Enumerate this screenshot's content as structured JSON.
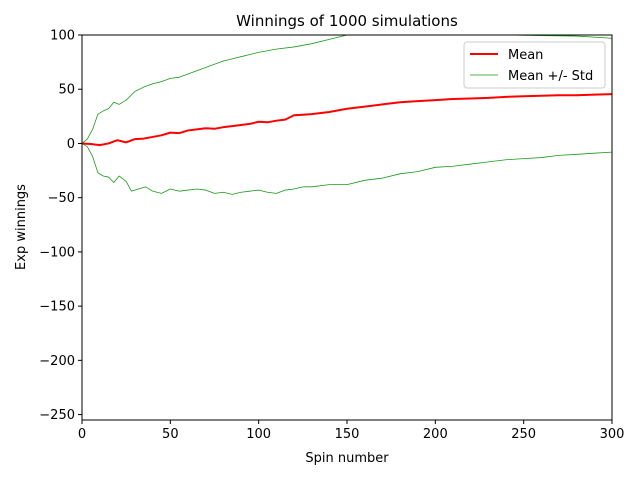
{
  "chart_data": {
    "type": "line",
    "title": "Winnings of 1000 simulations",
    "xlabel": "Spin number",
    "ylabel": "Exp winnings",
    "xlim": [
      0,
      300
    ],
    "ylim": [
      -255,
      100
    ],
    "xticks": [
      0,
      50,
      100,
      150,
      200,
      250,
      300
    ],
    "yticks": [
      100,
      50,
      0,
      -50,
      -100,
      -150,
      -200,
      -250
    ],
    "grid": false,
    "legend_position": "top-right",
    "series": [
      {
        "name": "Mean",
        "color": "#ff0000",
        "role": "mean",
        "points": [
          [
            0,
            0
          ],
          [
            5,
            -0.5
          ],
          [
            10,
            -1.5
          ],
          [
            15,
            0
          ],
          [
            20,
            3
          ],
          [
            25,
            1
          ],
          [
            30,
            4
          ],
          [
            35,
            4.5
          ],
          [
            40,
            6
          ],
          [
            45,
            7.5
          ],
          [
            50,
            10
          ],
          [
            55,
            9.5
          ],
          [
            60,
            12
          ],
          [
            65,
            13
          ],
          [
            70,
            14
          ],
          [
            75,
            13.5
          ],
          [
            80,
            15
          ],
          [
            85,
            16
          ],
          [
            90,
            17
          ],
          [
            95,
            18
          ],
          [
            100,
            20
          ],
          [
            105,
            19.5
          ],
          [
            110,
            21
          ],
          [
            115,
            22
          ],
          [
            120,
            26
          ],
          [
            125,
            26.5
          ],
          [
            130,
            27
          ],
          [
            140,
            29
          ],
          [
            150,
            32
          ],
          [
            160,
            34
          ],
          [
            170,
            36
          ],
          [
            180,
            38
          ],
          [
            190,
            39
          ],
          [
            200,
            40
          ],
          [
            210,
            41
          ],
          [
            220,
            41.5
          ],
          [
            230,
            42
          ],
          [
            240,
            43
          ],
          [
            250,
            43.5
          ],
          [
            260,
            44
          ],
          [
            270,
            44.5
          ],
          [
            280,
            44.5
          ],
          [
            290,
            45
          ],
          [
            300,
            45.5
          ]
        ]
      },
      {
        "name": "Mean +/- Std",
        "color": "#1a9a1a",
        "role": "upper",
        "points": [
          [
            0,
            0
          ],
          [
            3,
            4
          ],
          [
            6,
            13
          ],
          [
            9,
            27
          ],
          [
            12,
            30
          ],
          [
            15,
            32
          ],
          [
            18,
            38
          ],
          [
            21,
            36
          ],
          [
            25,
            40
          ],
          [
            30,
            48
          ],
          [
            35,
            52
          ],
          [
            40,
            55
          ],
          [
            45,
            57
          ],
          [
            50,
            60
          ],
          [
            55,
            61
          ],
          [
            60,
            64
          ],
          [
            65,
            67
          ],
          [
            70,
            70
          ],
          [
            75,
            73
          ],
          [
            80,
            76
          ],
          [
            85,
            78
          ],
          [
            90,
            80
          ],
          [
            95,
            82
          ],
          [
            100,
            84
          ],
          [
            110,
            87
          ],
          [
            120,
            89
          ],
          [
            130,
            92
          ],
          [
            140,
            96
          ],
          [
            150,
            100
          ],
          [
            160,
            102
          ],
          [
            180,
            104
          ],
          [
            200,
            104
          ],
          [
            220,
            102
          ],
          [
            240,
            100
          ],
          [
            260,
            99.5
          ],
          [
            280,
            99
          ],
          [
            300,
            97
          ]
        ]
      },
      {
        "name": "",
        "color": "#1a9a1a",
        "role": "lower",
        "points": [
          [
            0,
            0
          ],
          [
            3,
            -3
          ],
          [
            6,
            -12
          ],
          [
            9,
            -27
          ],
          [
            12,
            -30
          ],
          [
            15,
            -31
          ],
          [
            18,
            -36
          ],
          [
            21,
            -30
          ],
          [
            25,
            -35
          ],
          [
            28,
            -44
          ],
          [
            32,
            -42
          ],
          [
            36,
            -40
          ],
          [
            40,
            -44
          ],
          [
            45,
            -46
          ],
          [
            50,
            -42
          ],
          [
            55,
            -44
          ],
          [
            60,
            -43
          ],
          [
            65,
            -42
          ],
          [
            70,
            -43
          ],
          [
            75,
            -46
          ],
          [
            80,
            -45
          ],
          [
            85,
            -47
          ],
          [
            90,
            -45
          ],
          [
            95,
            -44
          ],
          [
            100,
            -43
          ],
          [
            105,
            -45
          ],
          [
            110,
            -46
          ],
          [
            115,
            -43
          ],
          [
            120,
            -42
          ],
          [
            125,
            -40
          ],
          [
            130,
            -40
          ],
          [
            140,
            -38
          ],
          [
            150,
            -38
          ],
          [
            160,
            -34
          ],
          [
            170,
            -32
          ],
          [
            180,
            -28
          ],
          [
            190,
            -26
          ],
          [
            200,
            -22
          ],
          [
            210,
            -21
          ],
          [
            220,
            -19
          ],
          [
            230,
            -17
          ],
          [
            240,
            -15
          ],
          [
            250,
            -14
          ],
          [
            260,
            -13
          ],
          [
            270,
            -11
          ],
          [
            280,
            -10
          ],
          [
            290,
            -9
          ],
          [
            300,
            -8
          ]
        ]
      }
    ]
  }
}
